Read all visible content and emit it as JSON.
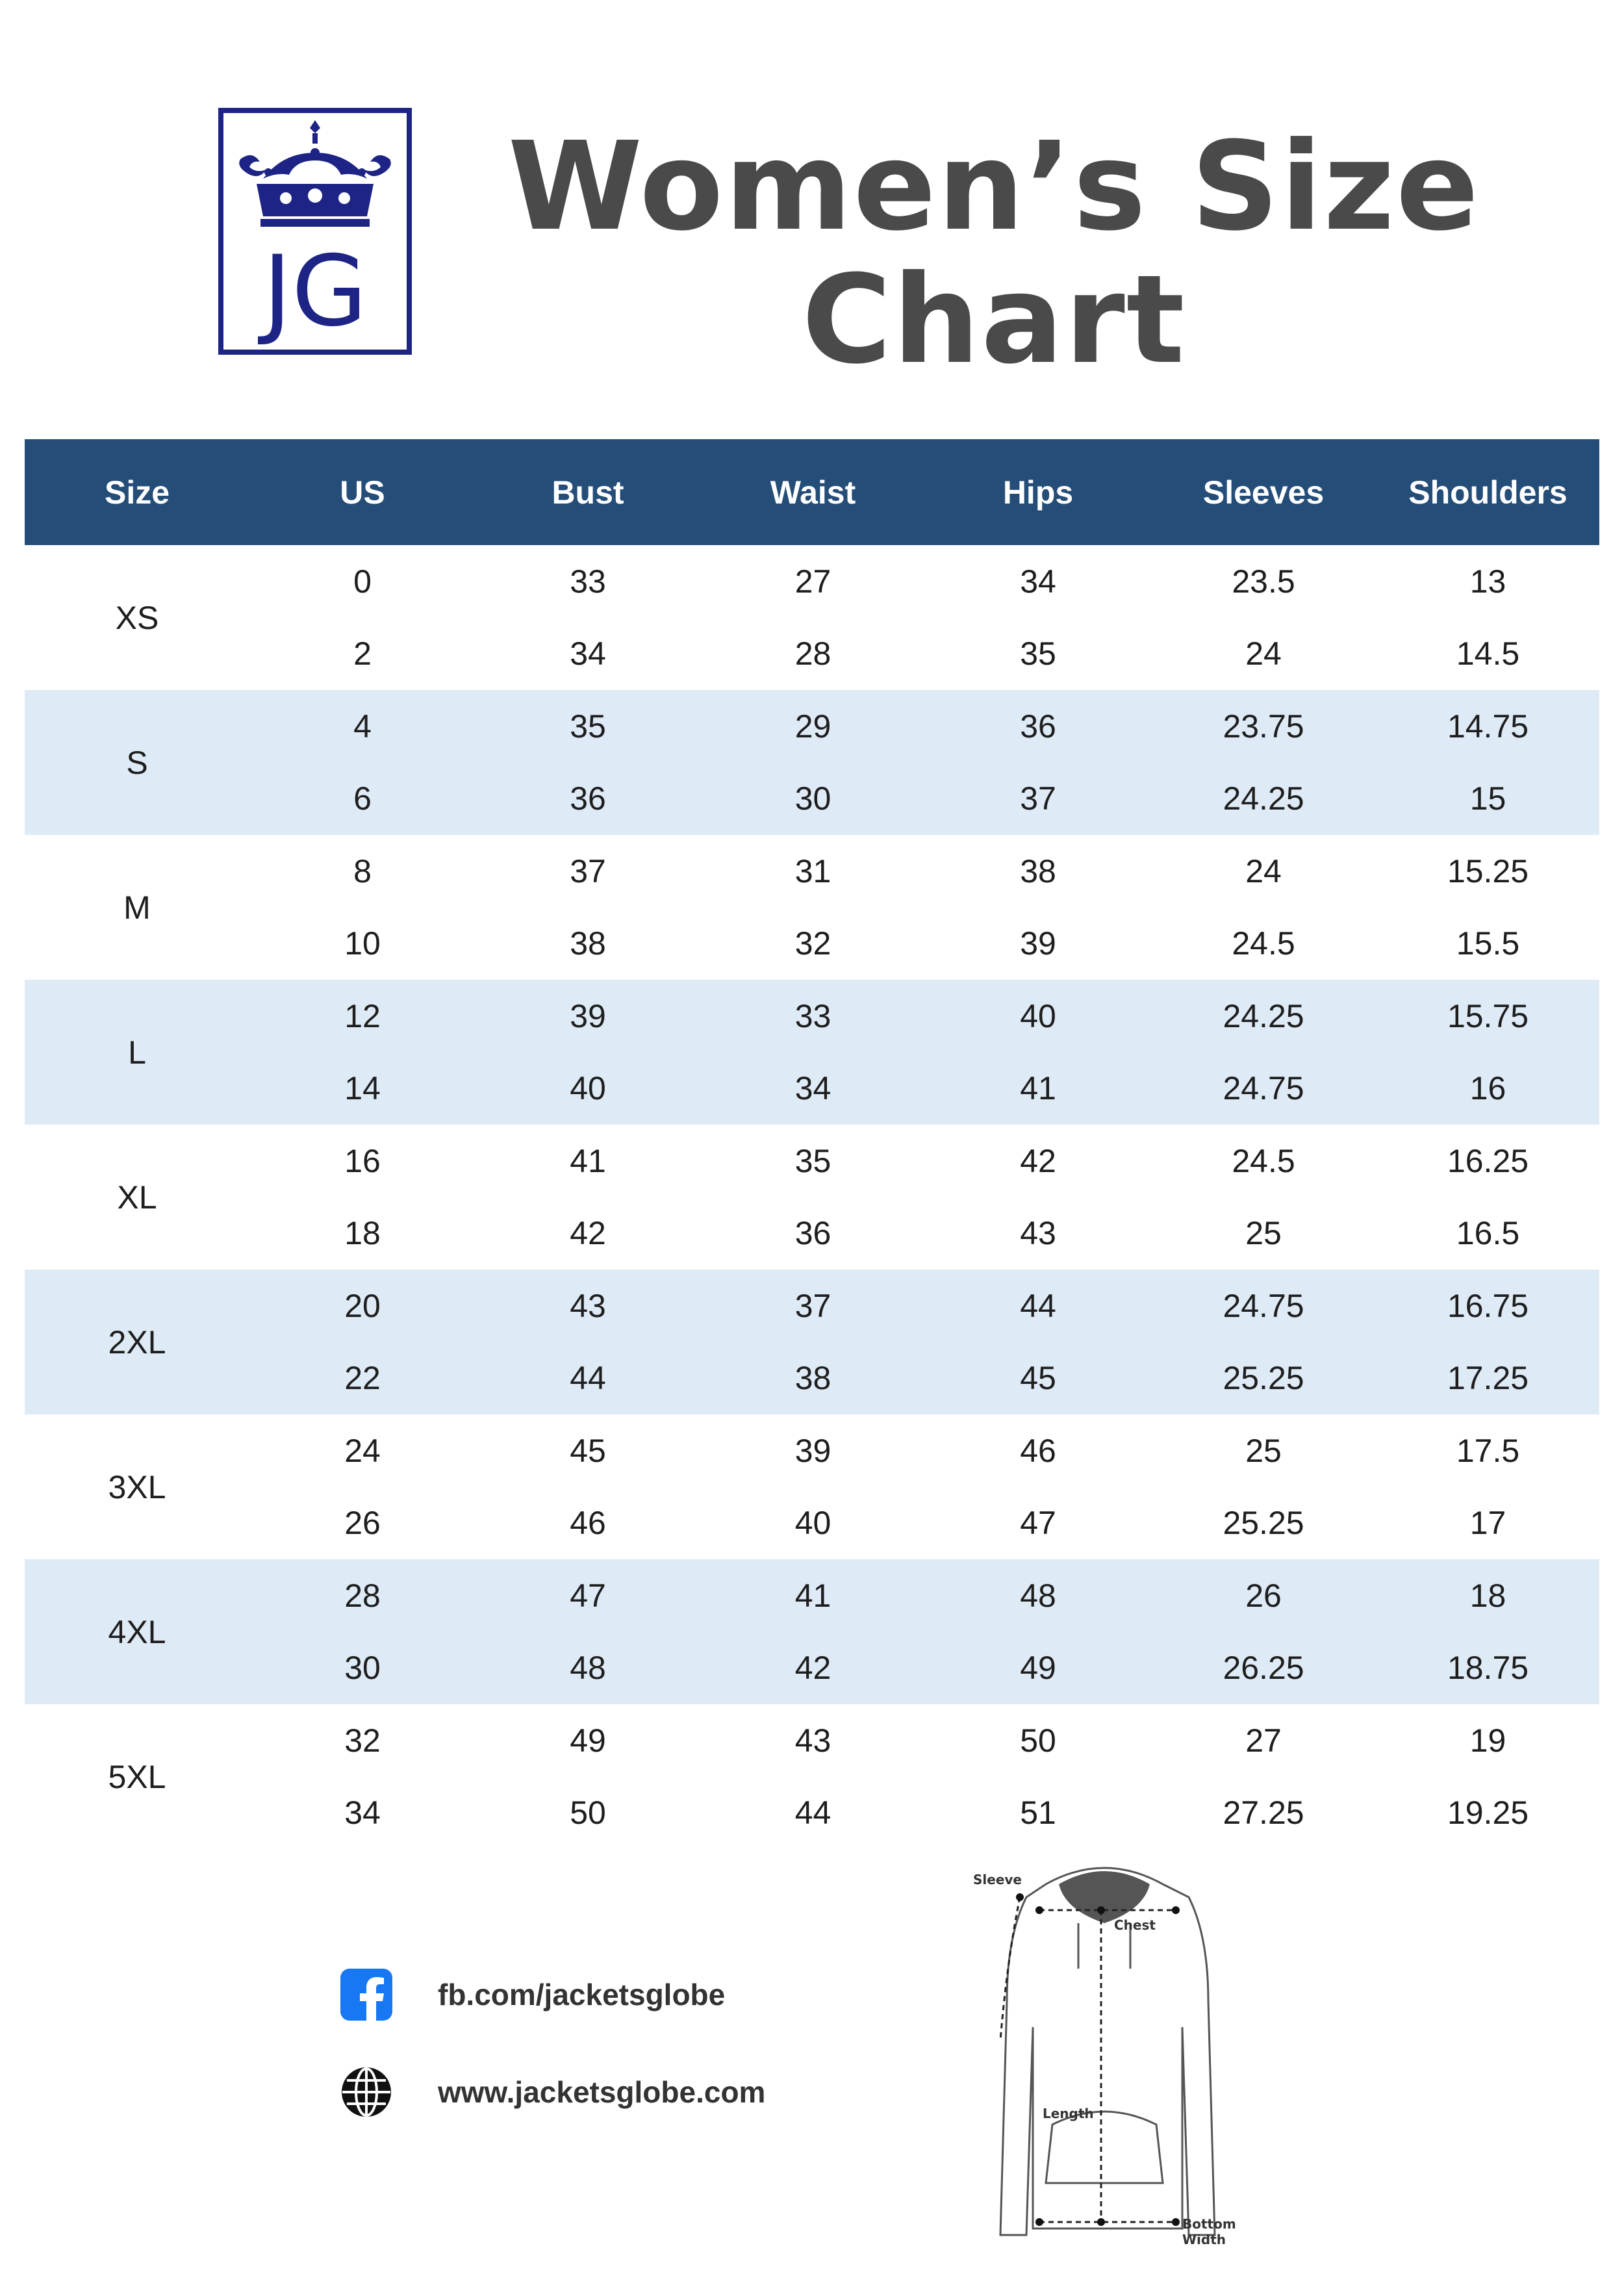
{
  "title": {
    "line1": "Women’s Size",
    "line2": "Chart"
  },
  "logo": {
    "text": "JG",
    "color": "#1d2485"
  },
  "colors": {
    "header_bg": "#244d78",
    "shaded_row": "#deeaf6",
    "title": "#4a4a4a"
  },
  "table": {
    "headers": [
      "Size",
      "US",
      "Bust",
      "Waist",
      "Hips",
      "Sleeves",
      "Shoulders"
    ],
    "groups": [
      {
        "size": "XS",
        "rows": [
          [
            "0",
            "33",
            "27",
            "34",
            "23.5",
            "13"
          ],
          [
            "2",
            "34",
            "28",
            "35",
            "24",
            "14.5"
          ]
        ]
      },
      {
        "size": "S",
        "rows": [
          [
            "4",
            "35",
            "29",
            "36",
            "23.75",
            "14.75"
          ],
          [
            "6",
            "36",
            "30",
            "37",
            "24.25",
            "15"
          ]
        ]
      },
      {
        "size": "M",
        "rows": [
          [
            "8",
            "37",
            "31",
            "38",
            "24",
            "15.25"
          ],
          [
            "10",
            "38",
            "32",
            "39",
            "24.5",
            "15.5"
          ]
        ]
      },
      {
        "size": "L",
        "rows": [
          [
            "12",
            "39",
            "33",
            "40",
            "24.25",
            "15.75"
          ],
          [
            "14",
            "40",
            "34",
            "41",
            "24.75",
            "16"
          ]
        ]
      },
      {
        "size": "XL",
        "rows": [
          [
            "16",
            "41",
            "35",
            "42",
            "24.5",
            "16.25"
          ],
          [
            "18",
            "42",
            "36",
            "43",
            "25",
            "16.5"
          ]
        ]
      },
      {
        "size": "2XL",
        "rows": [
          [
            "20",
            "43",
            "37",
            "44",
            "24.75",
            "16.75"
          ],
          [
            "22",
            "44",
            "38",
            "45",
            "25.25",
            "17.25"
          ]
        ]
      },
      {
        "size": "3XL",
        "rows": [
          [
            "24",
            "45",
            "39",
            "46",
            "25",
            "17.5"
          ],
          [
            "26",
            "46",
            "40",
            "47",
            "25.25",
            "17"
          ]
        ]
      },
      {
        "size": "4XL",
        "rows": [
          [
            "28",
            "47",
            "41",
            "48",
            "26",
            "18"
          ],
          [
            "30",
            "48",
            "42",
            "49",
            "26.25",
            "18.75"
          ]
        ]
      },
      {
        "size": "5XL",
        "rows": [
          [
            "32",
            "49",
            "43",
            "50",
            "27",
            "19"
          ],
          [
            "34",
            "50",
            "44",
            "51",
            "27.25",
            "19.25"
          ]
        ]
      }
    ]
  },
  "contacts": {
    "facebook": "fb.com/jacketsglobe",
    "website": "www.jacketsglobe.com"
  },
  "diagram": {
    "labels": {
      "sleeve": "Sleeve",
      "chest": "Chest",
      "length": "Length",
      "bottom": "Bottom",
      "width": "Width"
    }
  }
}
